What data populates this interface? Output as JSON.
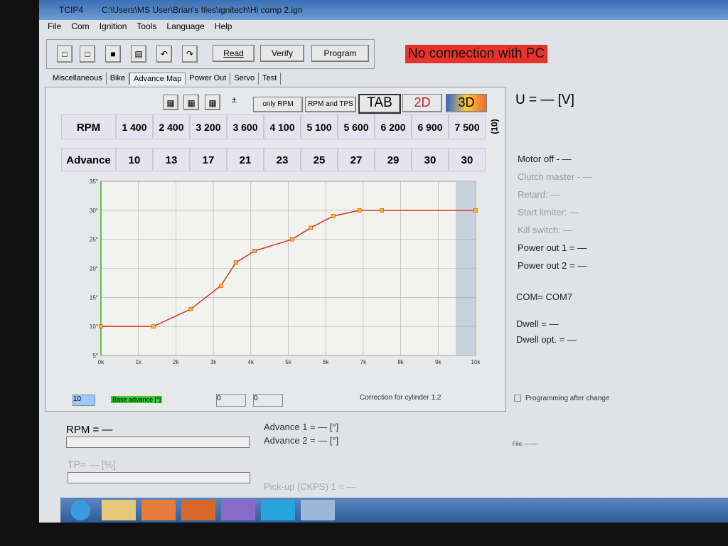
{
  "window": {
    "app": "TCIP4",
    "path": "C:\\Users\\MS User\\Brian's files\\ignitech\\Hi comp 2.ign"
  },
  "menu": [
    "File",
    "Com",
    "Ignition",
    "Tools",
    "Language",
    "Help"
  ],
  "toolbar": {
    "read": "Read",
    "verify": "Verify",
    "program": "Program"
  },
  "status": "No connection with PC",
  "tabs": [
    "Miscellaneous",
    "Bike",
    "Advance Map",
    "Power Out",
    "Servo",
    "Test"
  ],
  "active_tab": 2,
  "view_buttons": {
    "only_rpm": "only RPM",
    "rpm_tps": "RPM and TPS",
    "tab": "TAB",
    "d2": "2D",
    "d3": "3D"
  },
  "table": {
    "rpm_label": "RPM",
    "advance_label": "Advance",
    "rpm": [
      "1 400",
      "2 400",
      "3 200",
      "3 600",
      "4 100",
      "5 100",
      "5 600",
      "6 200",
      "6 900",
      "7 500"
    ],
    "advance": [
      10,
      13,
      17,
      21,
      23,
      25,
      27,
      29,
      30,
      30
    ],
    "count": "(10)"
  },
  "chart_data": {
    "type": "line",
    "x": [
      0,
      1400,
      2400,
      3200,
      3600,
      4100,
      5100,
      5600,
      6200,
      6900,
      7500,
      10000
    ],
    "values": [
      10,
      10,
      13,
      17,
      21,
      23,
      25,
      27,
      29,
      30,
      30,
      30
    ],
    "color": "#d8321e",
    "marker_color": "#f2c21c",
    "xlim": [
      0,
      10000
    ],
    "ylim": [
      5,
      35
    ],
    "xticks": [
      {
        "value": 0,
        "label": "0k"
      },
      {
        "value": 1000,
        "label": "1k"
      },
      {
        "value": 2000,
        "label": "2k"
      },
      {
        "value": 3000,
        "label": "3k"
      },
      {
        "value": 4000,
        "label": "4k"
      },
      {
        "value": 5000,
        "label": "5k"
      },
      {
        "value": 6000,
        "label": "6k"
      },
      {
        "value": 7000,
        "label": "7k"
      },
      {
        "value": 8000,
        "label": "8k"
      },
      {
        "value": 9000,
        "label": "9k"
      },
      {
        "value": 10000,
        "label": "10k"
      }
    ],
    "yticks": [
      {
        "value": 5,
        "label": "5°"
      },
      {
        "value": 10,
        "label": "10°"
      },
      {
        "value": 15,
        "label": "15°"
      },
      {
        "value": 20,
        "label": "20°"
      },
      {
        "value": 25,
        "label": "25°"
      },
      {
        "value": 30,
        "label": "30°"
      },
      {
        "value": 35,
        "label": "35°"
      }
    ],
    "grid": true
  },
  "map_controls": {
    "base_value": "10",
    "base_label": "Base advance [°]",
    "spin1": "0",
    "spin2": "0",
    "correction": "Correction for cylinder 1,2"
  },
  "status_panel": {
    "voltage": "U = — [V]",
    "items": [
      "Motor off - —",
      "Clutch master - —",
      "Retard: —",
      "Start limiter: —",
      "Kill switch: —",
      "Power out 1 = —",
      "Power out 2 = —"
    ],
    "com": "COM= COM7",
    "dwell": "Dwell = —",
    "dwell_opt": "Dwell opt. = —",
    "programming": "Programming after change",
    "file": "File: -------"
  },
  "live": {
    "rpm": "RPM = —",
    "tp": "TP= — [%]",
    "advance1": "Advance 1 = — [°]",
    "advance2": "Advance 2 = — [°]",
    "pickup": "Pick-up (CKPS) 1 = —"
  }
}
